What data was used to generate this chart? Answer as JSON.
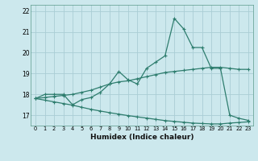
{
  "xlabel": "Humidex (Indice chaleur)",
  "background_color": "#cce8ed",
  "grid_color": "#aacdd5",
  "line_color": "#2e7d6e",
  "x_values": [
    0,
    1,
    2,
    3,
    4,
    5,
    6,
    7,
    8,
    9,
    10,
    11,
    12,
    13,
    14,
    15,
    16,
    17,
    18,
    19,
    20,
    21,
    22,
    23
  ],
  "main_line": [
    17.8,
    18.0,
    18.0,
    18.0,
    17.5,
    17.75,
    17.85,
    18.1,
    18.5,
    19.1,
    18.7,
    18.5,
    19.25,
    19.55,
    19.85,
    21.65,
    21.15,
    20.25,
    20.25,
    19.25,
    19.25,
    17.0,
    16.85,
    16.75
  ],
  "upper_line": [
    17.8,
    17.85,
    17.9,
    17.95,
    18.0,
    18.1,
    18.2,
    18.35,
    18.5,
    18.6,
    18.65,
    18.75,
    18.85,
    18.95,
    19.05,
    19.1,
    19.15,
    19.2,
    19.25,
    19.3,
    19.3,
    19.25,
    19.2,
    19.2
  ],
  "lower_line": [
    17.8,
    17.72,
    17.64,
    17.56,
    17.48,
    17.38,
    17.28,
    17.2,
    17.12,
    17.05,
    16.98,
    16.92,
    16.86,
    16.8,
    16.74,
    16.7,
    16.66,
    16.62,
    16.6,
    16.58,
    16.58,
    16.62,
    16.65,
    16.68
  ],
  "ylim": [
    16.5,
    22.3
  ],
  "yticks": [
    17,
    18,
    19,
    20,
    21,
    22
  ],
  "marker": "+",
  "markersize": 3.5,
  "linewidth": 0.9
}
